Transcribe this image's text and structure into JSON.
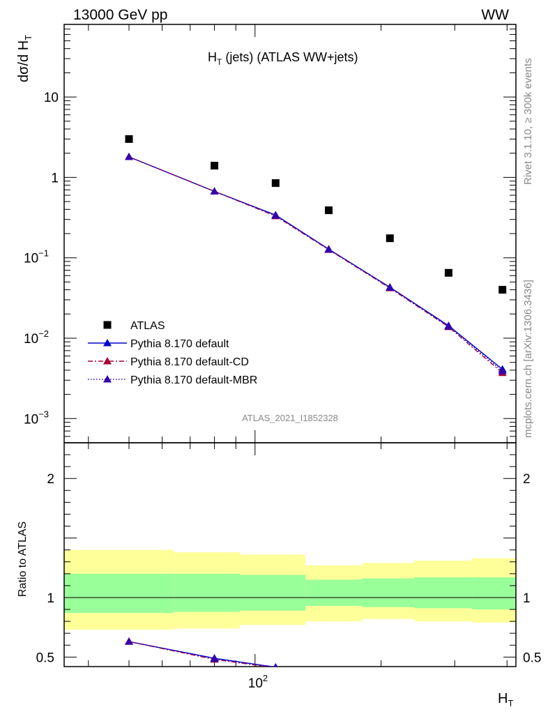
{
  "header": {
    "left": "13000 GeV pp",
    "right": "WW"
  },
  "plot_title_main": "H",
  "plot_title_sub": "T",
  "plot_title_rest": " (jets) (ATLAS WW+jets)",
  "analysis_id": "ATLAS_2021_I1852328",
  "side_text_top": "Rivet 3.1.10, ≥ 300k events",
  "side_text_bottom": "mcplots.cern.ch [arXiv:1306.3436]",
  "colors": {
    "atlas": "#000000",
    "pythia_default": "#0000cc",
    "pythia_cd": "#aa0033",
    "pythia_mbr": "#3300aa",
    "band_inner": "#99ff99",
    "band_outer": "#ffff99"
  },
  "chart_data": [
    {
      "type": "line",
      "scale": "log-log",
      "ylabel_main": "dσ/d H",
      "ylabel_sub": "T",
      "xlim": [
        35,
        420
      ],
      "ylim": [
        0.0005,
        80
      ],
      "yticks": [
        {
          "value": 10,
          "label": "10"
        },
        {
          "value": 1,
          "label": "1"
        },
        {
          "value": 0.1,
          "label": "10",
          "exp": "−1"
        },
        {
          "value": 0.01,
          "label": "10",
          "exp": "−2"
        },
        {
          "value": 0.001,
          "label": "10",
          "exp": "−3"
        }
      ],
      "legend_position": "lower-left",
      "x": [
        50,
        80,
        112,
        150,
        210,
        290,
        390
      ],
      "series": [
        {
          "name": "ATLAS",
          "key": "atlas",
          "style": "marker-square",
          "values": [
            3.0,
            1.4,
            0.85,
            0.39,
            0.175,
            0.065,
            0.04
          ]
        },
        {
          "name": "Pythia 8.170 default",
          "key": "pythia_default",
          "style": "solid",
          "values": [
            1.8,
            0.67,
            0.34,
            0.128,
            0.043,
            0.0143,
            0.0041
          ]
        },
        {
          "name": "Pythia 8.170 default-CD",
          "key": "pythia_cd",
          "style": "dashdot",
          "values": [
            1.8,
            0.67,
            0.33,
            0.126,
            0.042,
            0.0138,
            0.0037
          ]
        },
        {
          "name": "Pythia 8.170 default-MBR",
          "key": "pythia_mbr",
          "style": "dotted",
          "values": [
            1.8,
            0.67,
            0.335,
            0.127,
            0.0425,
            0.014,
            0.0039
          ]
        }
      ]
    },
    {
      "type": "line",
      "scale": "log-x",
      "ylabel": "Ratio to ATLAS",
      "xlabel_main": "H",
      "xlabel_sub": "T",
      "xlim": [
        35,
        420
      ],
      "ylim": [
        0.42,
        2.3
      ],
      "yticks": [
        {
          "value": 2,
          "label": "2"
        },
        {
          "value": 1,
          "label": "1"
        },
        {
          "value": 0.5,
          "label": "0.5"
        }
      ],
      "xticks": [
        {
          "value": 100,
          "label": "10",
          "exp": "2"
        }
      ],
      "bins": [
        {
          "x_low": 35,
          "x_high": 64,
          "inner": [
            0.87,
            1.2
          ],
          "outer": [
            0.73,
            1.4
          ]
        },
        {
          "x_low": 64,
          "x_high": 92,
          "inner": [
            0.88,
            1.2
          ],
          "outer": [
            0.74,
            1.38
          ]
        },
        {
          "x_low": 92,
          "x_high": 132,
          "inner": [
            0.89,
            1.19
          ],
          "outer": [
            0.77,
            1.36
          ]
        },
        {
          "x_low": 132,
          "x_high": 180,
          "inner": [
            0.93,
            1.15
          ],
          "outer": [
            0.8,
            1.27
          ]
        },
        {
          "x_low": 180,
          "x_high": 240,
          "inner": [
            0.92,
            1.16
          ],
          "outer": [
            0.82,
            1.29
          ]
        },
        {
          "x_low": 240,
          "x_high": 330,
          "inner": [
            0.91,
            1.17
          ],
          "outer": [
            0.8,
            1.31
          ]
        },
        {
          "x_low": 330,
          "x_high": 420,
          "inner": [
            0.9,
            1.17
          ],
          "outer": [
            0.79,
            1.33
          ]
        }
      ],
      "x": [
        50,
        80,
        112
      ],
      "series": [
        {
          "name": "Pythia 8.170 default",
          "key": "pythia_default",
          "style": "solid",
          "values": [
            0.63,
            0.49,
            0.415
          ]
        },
        {
          "name": "Pythia 8.170 default-CD",
          "key": "pythia_cd",
          "style": "dashdot",
          "values": [
            0.63,
            0.48,
            0.41
          ]
        },
        {
          "name": "Pythia 8.170 default-MBR",
          "key": "pythia_mbr",
          "style": "dotted",
          "values": [
            0.63,
            0.485,
            0.412
          ]
        }
      ]
    }
  ]
}
